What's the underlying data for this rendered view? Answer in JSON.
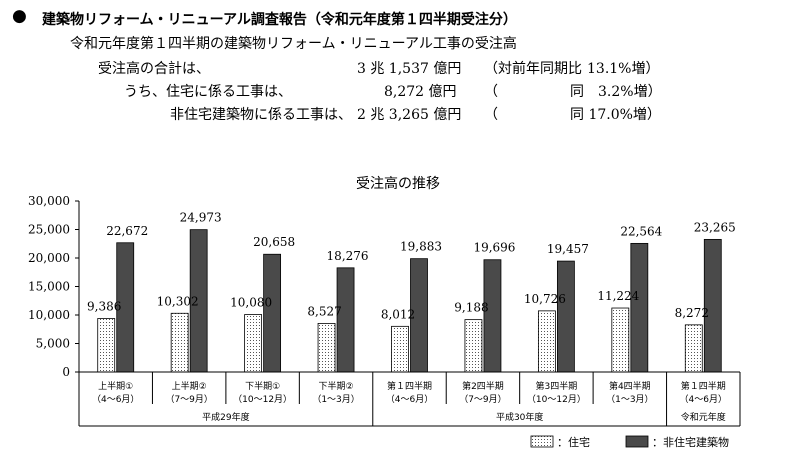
{
  "report": {
    "bullet": "●",
    "title": "建築物リフォーム・リニューアル調査報告（令和元年度第１四半期受注分）",
    "subtitle": "令和元年度第１四半期の建築物リフォーム・リニューアル工事の受注高",
    "rows": [
      {
        "label": "受注高の合計は、",
        "amount": "3 兆 1,537 億円",
        "paren": "（対前年同期比",
        "change": "13.1%増）"
      },
      {
        "label": "うち、住宅に係る工事は、",
        "amount": "8,272 億円",
        "paren": "（",
        "change": "同　3.2%増）"
      },
      {
        "label": "非住宅建築物に係る工事は、",
        "amount": "2 兆 3,265 億円",
        "paren": "（",
        "change": "同 17.0%増）"
      }
    ]
  },
  "chart_data": {
    "type": "bar",
    "title": "受注高の推移",
    "ylim": [
      0,
      30000
    ],
    "yticks": [
      "0",
      "5,000",
      "10,000",
      "15,000",
      "20,000",
      "25,000",
      "30,000"
    ],
    "categories": [
      [
        "上半期①",
        "（4～6月）"
      ],
      [
        "上半期②",
        "（7～9月）"
      ],
      [
        "下半期①",
        "（10～12月）"
      ],
      [
        "下半期②",
        "（1～3月）"
      ],
      [
        "第１四半期",
        "（4～6月）"
      ],
      [
        "第2四半期",
        "（7～9月）"
      ],
      [
        "第3四半期",
        "（10～12月）"
      ],
      [
        "第4四半期",
        "（1～3月）"
      ],
      [
        "第１四半期",
        "（4～6月）"
      ]
    ],
    "groups": [
      {
        "label": "平成29年度",
        "start": 0,
        "end": 3
      },
      {
        "label": "平成30年度",
        "start": 4,
        "end": 7
      },
      {
        "label": "令和元年度",
        "start": 8,
        "end": 8
      }
    ],
    "series": [
      {
        "name": "：住宅",
        "values": [
          9386,
          10302,
          10080,
          8527,
          8012,
          9188,
          10726,
          11224,
          8272
        ],
        "labels": [
          "9,386",
          "10,302",
          "10,080",
          "8,527",
          "8,012",
          "9,188",
          "10,726",
          "11,224",
          "8,272"
        ]
      },
      {
        "name": "：非住宅建築物",
        "values": [
          22672,
          24973,
          20658,
          18276,
          19883,
          19696,
          19457,
          22564,
          23265
        ],
        "labels": [
          "22,672",
          "24,973",
          "20,658",
          "18,276",
          "19,883",
          "19,696",
          "19,457",
          "22,564",
          "23,265"
        ]
      }
    ],
    "colors": {
      "residential": "#ffffff",
      "nonresidential": "#4a4a4a"
    },
    "legend": "bottom-right",
    "grid": false
  }
}
